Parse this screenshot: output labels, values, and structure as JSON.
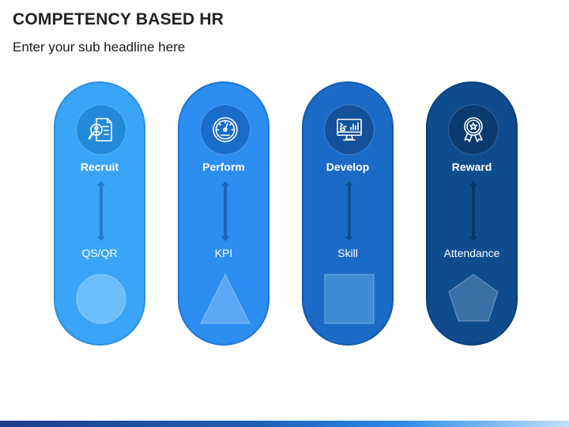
{
  "header": {
    "title": "COMPETENCY BASED HR",
    "subtitle": "Enter your sub headline here"
  },
  "columns": [
    {
      "label": "Recruit",
      "sublabel": "QS/QR",
      "icon": "recruit-document-search-icon",
      "shape": "circle",
      "colors": {
        "bg": "#3aa5f7",
        "border": "#2b8fe0",
        "icon_circle": "#238ad9",
        "arrow": "#247bc8",
        "shape_fill": "#6dbefc"
      }
    },
    {
      "label": "Perform",
      "sublabel": "KPI",
      "icon": "speedometer-icon",
      "shape": "triangle",
      "colors": {
        "bg": "#2c8ef0",
        "border": "#2175d6",
        "icon_circle": "#1a6cc9",
        "arrow": "#1b64b7",
        "shape_fill": "#5ba9f5"
      }
    },
    {
      "label": "Develop",
      "sublabel": "Skill",
      "icon": "computer-monitor-icon",
      "shape": "square",
      "colors": {
        "bg": "#1b6bc6",
        "border": "#1459a8",
        "icon_circle": "#13519a",
        "arrow": "#124c8f",
        "shape_fill": "#3f8bd4"
      }
    },
    {
      "label": "Reward",
      "sublabel": "Attendance",
      "icon": "award-ribbon-icon",
      "shape": "pentagon",
      "colors": {
        "bg": "#0f4c8e",
        "border": "#0b3e77",
        "icon_circle": "#0a3a6e",
        "arrow": "#0a3566",
        "shape_fill": "#3b6fa8"
      }
    }
  ]
}
